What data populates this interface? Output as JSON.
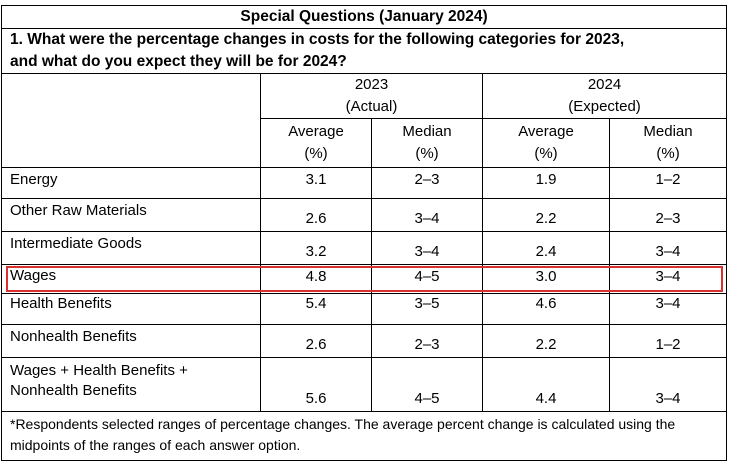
{
  "title": "Special Questions (January 2024)",
  "question": {
    "line1": "1. What were the percentage changes in costs for the following categories for 2023,",
    "line2": "and what do you expect they will be for 2024?"
  },
  "years": [
    {
      "year": "2023",
      "qualifier": "(Actual)"
    },
    {
      "year": "2024",
      "qualifier": "(Expected)"
    }
  ],
  "stats": [
    {
      "label": "Average",
      "unit": "(%)"
    },
    {
      "label": "Median",
      "unit": "(%)"
    },
    {
      "label": "Average",
      "unit": "(%)"
    },
    {
      "label": "Median",
      "unit": "(%)"
    }
  ],
  "rows": [
    {
      "label": "Energy",
      "values": [
        "3.1",
        "2–3",
        "1.9",
        "1–2"
      ]
    },
    {
      "label": "Other Raw Materials",
      "values": [
        "2.6",
        "3–4",
        "2.2",
        "2–3"
      ]
    },
    {
      "label": "Intermediate Goods",
      "values": [
        "3.2",
        "3–4",
        "2.4",
        "3–4"
      ]
    },
    {
      "label": "Wages",
      "values": [
        "4.8",
        "4–5",
        "3.0",
        "3–4"
      ],
      "highlighted": true
    },
    {
      "label": "Health Benefits",
      "values": [
        "5.4",
        "3–5",
        "4.6",
        "3–4"
      ]
    },
    {
      "label": "Nonhealth Benefits",
      "values": [
        "2.6",
        "2–3",
        "2.2",
        "1–2"
      ]
    },
    {
      "label_line1": "Wages + Health Benefits +",
      "label_line2": "Nonhealth Benefits",
      "values": [
        "5.6",
        "4–5",
        "4.4",
        "3–4"
      ]
    }
  ],
  "footnote": {
    "line1": "*Respondents selected ranges of percentage changes. The average percent change is calculated using the",
    "line2": "midpoints of the ranges of each answer option."
  },
  "colors": {
    "highlight": "#d9312f",
    "border": "#000000",
    "background": "#ffffff"
  }
}
